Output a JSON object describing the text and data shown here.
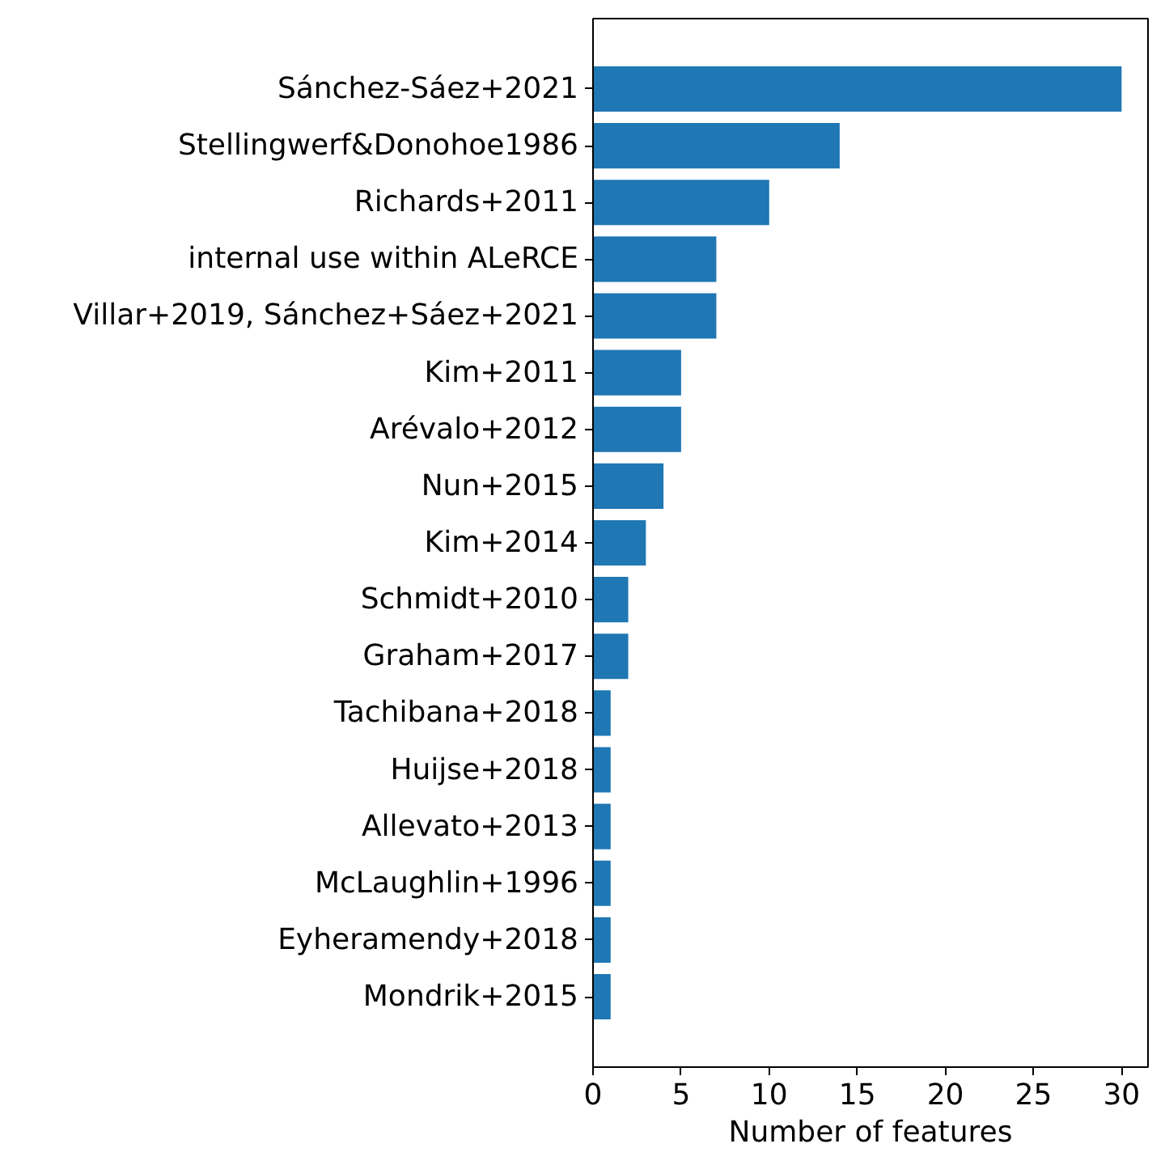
{
  "chart_data": {
    "type": "bar",
    "orientation": "horizontal",
    "xlabel": "Number of features",
    "categories": [
      "Sánchez-Sáez+2021",
      "Stellingwerf&Donohoe1986",
      "Richards+2011",
      "internal use within ALeRCE",
      "Villar+2019, Sánchez+Sáez+2021",
      "Kim+2011",
      "Arévalo+2012",
      "Nun+2015",
      "Kim+2014",
      "Schmidt+2010",
      "Graham+2017",
      "Tachibana+2018",
      "Huijse+2018",
      "Allevato+2013",
      "McLaughlin+1996",
      "Eyheramendy+2018",
      "Mondrik+2015"
    ],
    "values": [
      30,
      14,
      10,
      7,
      7,
      5,
      5,
      4,
      3,
      2,
      2,
      1,
      1,
      1,
      1,
      1,
      1
    ],
    "color": "#1f77b4",
    "xlim": [
      0,
      31.5
    ],
    "xticks": [
      0,
      5,
      10,
      15,
      20,
      25,
      30
    ],
    "grid": false
  }
}
